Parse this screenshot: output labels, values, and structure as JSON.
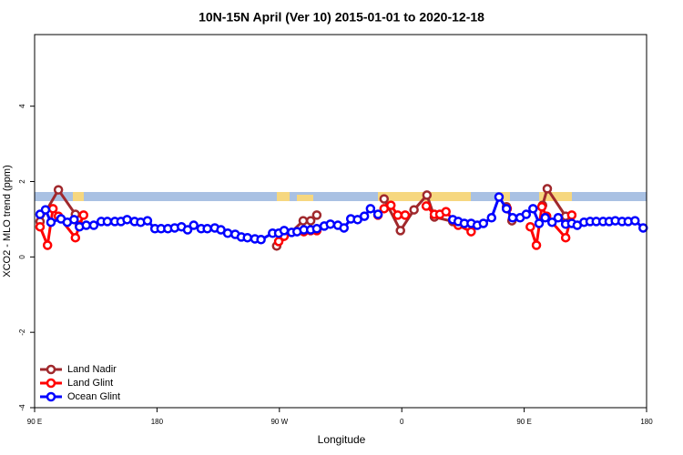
{
  "chart_data": {
    "type": "line",
    "title": "10N-15N April (Ver 10)   2015-01-01 to 2020-12-18",
    "x_label": "Longitude",
    "y_label": "XCO2 - MLO trend (ppm)",
    "xlim": [
      90,
      540
    ],
    "ylim": [
      -4,
      5.9
    ],
    "xticks": [
      {
        "value": 90,
        "label": "90 E"
      },
      180,
      {
        "value": 270,
        "label": "90 W"
      },
      {
        "value": 360,
        "label": "0"
      },
      {
        "value": 450,
        "label": "90 E"
      },
      180
    ],
    "yticks": [
      -4,
      -2,
      0,
      2,
      4
    ],
    "legend": "bottom-left",
    "series": [
      {
        "name": "Land Nadir",
        "color": "#a0282c",
        "x": [
          94,
          107.5,
          120,
          200,
          268,
          287.5,
          293,
          297.5,
          320,
          347,
          359,
          369,
          378.5,
          384,
          397.5,
          420,
          437,
          441,
          452,
          463.5,
          467,
          480.5
        ],
        "values": [
          0.94,
          1.78,
          1.13,
          null,
          0.29,
          0.96,
          0.96,
          1.11,
          null,
          1.54,
          0.7,
          1.25,
          1.64,
          1.06,
          0.94,
          null,
          1.33,
          0.96,
          null,
          1.37,
          1.81,
          1.08
        ]
      },
      {
        "name": "Land Glint",
        "color": "#ff0000",
        "x": [
          94,
          99.5,
          103.5,
          107.5,
          120,
          123,
          126,
          200,
          269.5,
          273.5,
          288,
          293,
          297.5,
          320,
          342.5,
          347,
          352,
          357,
          362.5,
          370,
          378,
          384,
          388,
          392.5,
          401.5,
          411,
          425,
          437.5,
          446,
          454.5,
          459,
          463,
          466.5,
          480.5,
          485
        ],
        "values": [
          0.8,
          0.31,
          1.28,
          1.08,
          0.51,
          0.84,
          1.11,
          null,
          0.41,
          0.55,
          0.67,
          0.7,
          0.7,
          null,
          1.11,
          1.28,
          1.37,
          1.11,
          1.11,
          null,
          1.35,
          1.13,
          1.13,
          1.2,
          0.84,
          0.67,
          null,
          1.28,
          null,
          0.8,
          0.31,
          1.33,
          1.08,
          0.51,
          1.11
        ]
      },
      {
        "name": "Ocean Glint",
        "color": "#0000ff",
        "x": [
          94,
          98,
          102,
          109.4,
          114,
          119,
          123,
          128,
          133.5,
          139,
          143.5,
          149,
          153.5,
          158,
          163.5,
          168,
          173,
          178.5,
          183,
          188,
          193,
          198,
          202.5,
          207,
          212.5,
          217,
          222.5,
          227,
          232,
          237.5,
          242,
          246.5,
          252,
          256.5,
          265,
          269.5,
          273.5,
          279,
          283,
          288,
          293,
          297.5,
          303,
          307.5,
          313,
          317.5,
          322.5,
          327.5,
          332.5,
          337,
          342.5,
          370,
          397.5,
          401.5,
          406,
          411,
          415.5,
          420,
          426,
          431.5,
          437,
          441.5,
          447,
          451.5,
          456.5,
          461,
          465.5,
          470.5,
          475,
          480.5,
          485,
          489,
          494,
          498.5,
          503,
          508,
          512.5,
          517,
          522,
          526.5,
          531.5,
          537.5
        ],
        "values": [
          1.13,
          1.25,
          0.92,
          1.01,
          0.92,
          0.99,
          0.8,
          0.84,
          0.84,
          0.94,
          0.94,
          0.94,
          0.94,
          0.99,
          0.94,
          0.92,
          0.96,
          0.75,
          0.75,
          0.75,
          0.77,
          0.8,
          0.72,
          0.84,
          0.75,
          0.75,
          0.77,
          0.72,
          0.63,
          0.6,
          0.53,
          0.51,
          0.48,
          0.46,
          0.63,
          0.63,
          0.7,
          0.65,
          0.67,
          0.72,
          0.72,
          0.75,
          0.82,
          0.87,
          0.84,
          0.77,
          1.01,
          0.99,
          1.08,
          1.28,
          1.13,
          null,
          0.99,
          0.94,
          0.89,
          0.89,
          0.84,
          0.89,
          1.04,
          1.59,
          1.28,
          1.04,
          1.04,
          1.13,
          1.28,
          0.89,
          1.04,
          0.92,
          1.04,
          0.87,
          0.89,
          0.84,
          0.92,
          0.94,
          0.94,
          0.94,
          0.94,
          0.96,
          0.94,
          0.94,
          0.96,
          0.77
        ]
      }
    ]
  }
}
